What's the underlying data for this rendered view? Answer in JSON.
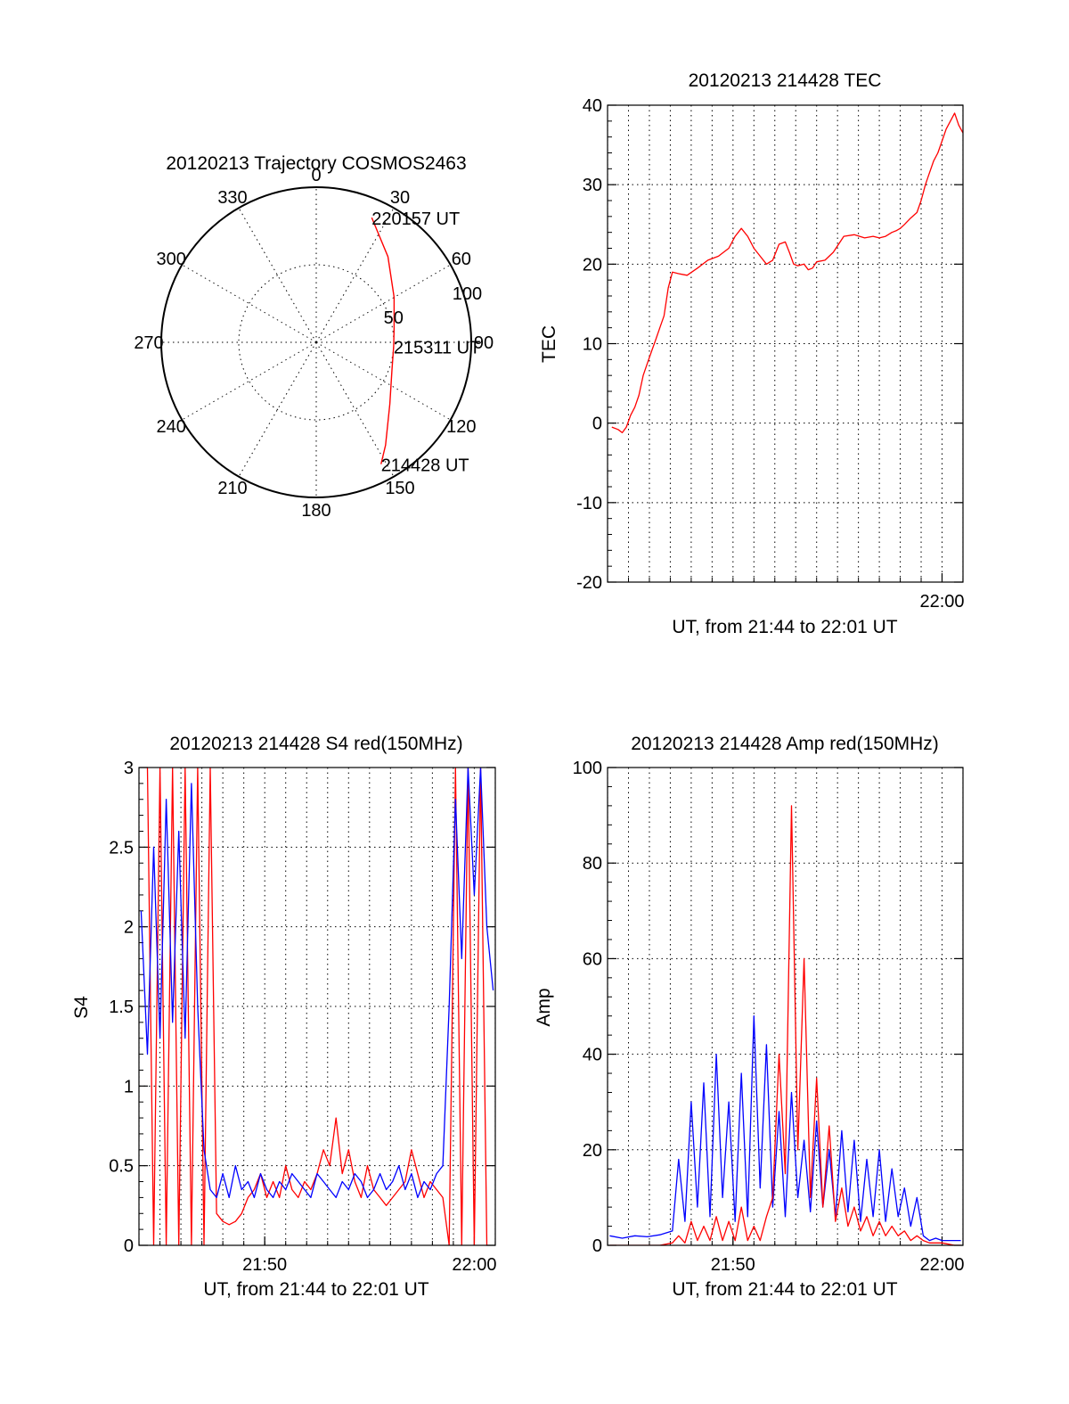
{
  "chart_data": [
    {
      "type": "polar",
      "title": "20120213 Trajectory COSMOS2463",
      "angle_labels": [
        "0",
        "30",
        "60",
        "90",
        "120",
        "150",
        "180",
        "210",
        "240",
        "270",
        "300",
        "330"
      ],
      "radius_labels": [
        "50",
        "100"
      ],
      "rlim": [
        0,
        100
      ],
      "grid": true,
      "series": [
        {
          "color": "#ff0000",
          "points": [
            {
              "az": 24,
              "zen": 88,
              "label": "220157 UT"
            },
            {
              "az": 40,
              "zen": 72
            },
            {
              "az": 60,
              "zen": 58
            },
            {
              "az": 80,
              "zen": 51
            },
            {
              "az": 93,
              "zen": 50,
              "label": "215311 UT"
            },
            {
              "az": 110,
              "zen": 52
            },
            {
              "az": 130,
              "zen": 62
            },
            {
              "az": 146,
              "zen": 80
            },
            {
              "az": 152,
              "zen": 89,
              "label": "214428 UT"
            }
          ]
        }
      ]
    },
    {
      "type": "line",
      "title": "20120213 214428 TEC",
      "xlabel": "UT, from 21:44 to 22:01 UT",
      "ylabel": "TEC",
      "xlim": [
        21.7333,
        22.0167
      ],
      "ylim": [
        -20,
        40
      ],
      "yticks": [
        "-20",
        "-10",
        "0",
        "10",
        "20",
        "30",
        "40"
      ],
      "xticks": [
        {
          "x": 22.0,
          "label": "22:00"
        }
      ],
      "grid": true,
      "series": [
        {
          "color": "#ff0000",
          "x": [
            21.7367,
            21.7417,
            21.745,
            21.7483,
            21.7517,
            21.755,
            21.7583,
            21.7617,
            21.765,
            21.7683,
            21.7717,
            21.775,
            21.7783,
            21.7817,
            21.785,
            21.79,
            21.7967,
            21.805,
            21.8133,
            21.8217,
            21.83,
            21.835,
            21.84,
            21.845,
            21.85,
            21.855,
            21.86,
            21.865,
            21.87,
            21.875,
            21.8783,
            21.8817,
            21.885,
            21.89,
            21.8933,
            21.8967,
            21.9,
            21.9067,
            21.9133,
            21.9217,
            21.93,
            21.9383,
            21.945,
            21.95,
            21.955,
            21.96,
            21.9633,
            21.9667,
            21.97,
            21.975,
            21.98,
            21.9833,
            21.9867,
            21.99,
            21.9933,
            21.9967,
            22.0,
            22.0033,
            22.0067,
            22.01,
            22.0133,
            22.0167
          ],
          "y": [
            -0.5,
            -0.8,
            -1.2,
            -0.5,
            1.0,
            2.0,
            3.5,
            6.0,
            7.5,
            9.0,
            10.5,
            12.0,
            13.5,
            17.0,
            19.0,
            18.8,
            18.6,
            19.5,
            20.5,
            21.0,
            22.0,
            23.5,
            24.5,
            23.5,
            22.0,
            21.0,
            20.0,
            20.5,
            22.5,
            22.8,
            21.5,
            20.0,
            19.8,
            20.0,
            19.3,
            19.5,
            20.3,
            20.5,
            21.5,
            23.5,
            23.7,
            23.3,
            23.5,
            23.3,
            23.5,
            24.0,
            24.2,
            24.5,
            25.0,
            25.8,
            26.5,
            28.0,
            30.0,
            31.5,
            33.0,
            34.0,
            35.5,
            37.0,
            38.0,
            39.0,
            37.5,
            36.5
          ]
        }
      ]
    },
    {
      "type": "line",
      "title": "20120213 214428 S4 red(150MHz)",
      "xlabel": "UT, from 21:44 to 22:01 UT",
      "ylabel": "S4",
      "xlim": [
        21.7333,
        22.0167
      ],
      "ylim": [
        0,
        3
      ],
      "yticks": [
        "0",
        "0.5",
        "1",
        "1.5",
        "2",
        "2.5",
        "3"
      ],
      "xticks": [
        {
          "x": 21.8333,
          "label": "21:50"
        },
        {
          "x": 22.0,
          "label": "22:00"
        }
      ],
      "grid": true,
      "series": [
        {
          "color": "#ff0000",
          "x": [
            21.74,
            21.745,
            21.75,
            21.755,
            21.76,
            21.765,
            21.77,
            21.775,
            21.78,
            21.785,
            21.79,
            21.795,
            21.8,
            21.805,
            21.81,
            21.815,
            21.82,
            21.825,
            21.83,
            21.835,
            21.84,
            21.845,
            21.85,
            21.855,
            21.86,
            21.865,
            21.87,
            21.875,
            21.88,
            21.885,
            21.89,
            21.895,
            21.9,
            21.905,
            21.91,
            21.915,
            21.92,
            21.925,
            21.93,
            21.935,
            21.94,
            21.945,
            21.95,
            21.955,
            21.96,
            21.965,
            21.97,
            21.975,
            21.98,
            21.985,
            21.99,
            21.995,
            22.0,
            22.005,
            22.01
          ],
          "y": [
            3.0,
            0.0,
            3.0,
            0.0,
            3.0,
            0.0,
            3.0,
            0.0,
            3.0,
            0.0,
            3.0,
            0.2,
            0.15,
            0.13,
            0.15,
            0.2,
            0.3,
            0.35,
            0.45,
            0.3,
            0.4,
            0.3,
            0.5,
            0.35,
            0.3,
            0.4,
            0.35,
            0.45,
            0.6,
            0.5,
            0.8,
            0.45,
            0.6,
            0.4,
            0.3,
            0.5,
            0.35,
            0.3,
            0.25,
            0.3,
            0.35,
            0.4,
            0.6,
            0.45,
            0.3,
            0.4,
            0.35,
            0.3,
            0.0,
            3.0,
            0.0,
            3.0,
            0.0,
            3.0,
            0.0
          ]
        },
        {
          "color": "#0000ff",
          "x": [
            21.735,
            21.74,
            21.745,
            21.75,
            21.755,
            21.76,
            21.765,
            21.77,
            21.775,
            21.78,
            21.785,
            21.79,
            21.795,
            21.8,
            21.805,
            21.81,
            21.815,
            21.82,
            21.825,
            21.83,
            21.835,
            21.84,
            21.845,
            21.85,
            21.855,
            21.86,
            21.865,
            21.87,
            21.875,
            21.88,
            21.885,
            21.89,
            21.895,
            21.9,
            21.905,
            21.91,
            21.915,
            21.92,
            21.925,
            21.93,
            21.935,
            21.94,
            21.945,
            21.95,
            21.955,
            21.96,
            21.965,
            21.97,
            21.975,
            21.98,
            21.985,
            21.99,
            21.995,
            22.0,
            22.005,
            22.01,
            22.015
          ],
          "y": [
            2.1,
            1.2,
            2.5,
            1.3,
            2.8,
            1.4,
            2.6,
            1.3,
            2.9,
            1.5,
            0.6,
            0.35,
            0.3,
            0.45,
            0.3,
            0.5,
            0.35,
            0.4,
            0.3,
            0.45,
            0.35,
            0.3,
            0.4,
            0.35,
            0.45,
            0.4,
            0.35,
            0.3,
            0.45,
            0.4,
            0.35,
            0.3,
            0.4,
            0.35,
            0.45,
            0.4,
            0.3,
            0.35,
            0.45,
            0.35,
            0.4,
            0.5,
            0.35,
            0.45,
            0.3,
            0.4,
            0.35,
            0.45,
            0.5,
            1.5,
            2.8,
            1.8,
            3.0,
            2.2,
            3.0,
            2.0,
            1.6
          ]
        }
      ]
    },
    {
      "type": "line",
      "title": "20120213 214428 Amp red(150MHz)",
      "xlabel": "UT, from 21:44 to 22:01 UT",
      "ylabel": "Amp",
      "xlim": [
        21.7333,
        22.0167
      ],
      "ylim": [
        0,
        100
      ],
      "yticks": [
        "0",
        "20",
        "40",
        "60",
        "80",
        "100"
      ],
      "xticks": [
        {
          "x": 21.8333,
          "label": "21:50"
        },
        {
          "x": 22.0,
          "label": "22:00"
        }
      ],
      "grid": true,
      "series": [
        {
          "color": "#0000ff",
          "x": [
            21.735,
            21.745,
            21.755,
            21.765,
            21.775,
            21.785,
            21.79,
            21.795,
            21.8,
            21.805,
            21.81,
            21.815,
            21.82,
            21.825,
            21.83,
            21.835,
            21.84,
            21.845,
            21.85,
            21.855,
            21.86,
            21.865,
            21.87,
            21.875,
            21.88,
            21.885,
            21.89,
            21.895,
            21.9,
            21.905,
            21.91,
            21.915,
            21.92,
            21.925,
            21.93,
            21.935,
            21.94,
            21.945,
            21.95,
            21.955,
            21.96,
            21.965,
            21.97,
            21.975,
            21.98,
            21.985,
            21.99,
            21.995,
            22.0,
            22.01,
            22.015
          ],
          "y": [
            2,
            1.5,
            2,
            1.8,
            2.2,
            3,
            18,
            5,
            30,
            8,
            34,
            6,
            40,
            10,
            30,
            5,
            36,
            6,
            48,
            12,
            42,
            8,
            28,
            6,
            32,
            10,
            22,
            7,
            26,
            8,
            20,
            6,
            24,
            7,
            22,
            5,
            18,
            6,
            20,
            5,
            16,
            6,
            12,
            4,
            10,
            2,
            1,
            1.5,
            1,
            1,
            1
          ]
        },
        {
          "color": "#ff0000",
          "x": [
            21.735,
            21.745,
            21.755,
            21.765,
            21.775,
            21.785,
            21.79,
            21.795,
            21.8,
            21.805,
            21.81,
            21.815,
            21.82,
            21.825,
            21.83,
            21.835,
            21.84,
            21.845,
            21.85,
            21.855,
            21.86,
            21.865,
            21.87,
            21.875,
            21.88,
            21.885,
            21.89,
            21.895,
            21.9,
            21.905,
            21.91,
            21.915,
            21.92,
            21.925,
            21.93,
            21.935,
            21.94,
            21.945,
            21.95,
            21.955,
            21.96,
            21.965,
            21.97,
            21.975,
            21.98,
            21.985,
            21.99,
            21.995,
            22.0,
            22.01,
            22.015
          ],
          "y": [
            0,
            0,
            0,
            0,
            0,
            0.5,
            2,
            0.5,
            5,
            1,
            4,
            1,
            6,
            1,
            5,
            1,
            8,
            1,
            4,
            1,
            6,
            10,
            40,
            15,
            92,
            20,
            60,
            10,
            35,
            8,
            25,
            5,
            12,
            4,
            8,
            3,
            6,
            2,
            5,
            2,
            4,
            2,
            3,
            1,
            2,
            1,
            0.5,
            0.5,
            0.5,
            0,
            0
          ]
        }
      ]
    }
  ]
}
